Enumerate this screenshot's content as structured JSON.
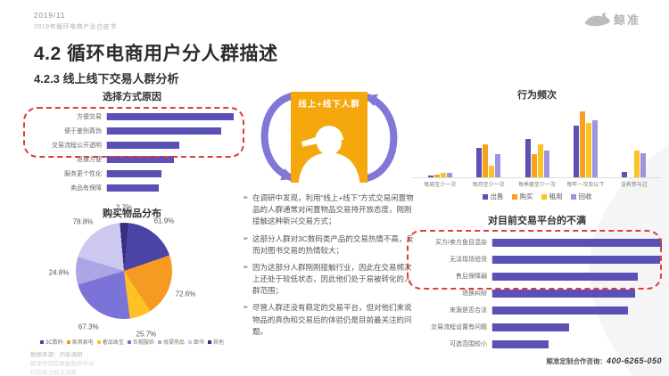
{
  "header": {
    "date": "2019/11",
    "doc_name": "2019年循环电商产业白皮书",
    "logo_text": "鲸准"
  },
  "title": "4.2 循环电商用户分人群描述",
  "subtitle": "4.2.3 线上线下交易人群分析",
  "center": {
    "card_title": "线上+线下人群",
    "bullets": [
      "在调研中发现，利用“线上+线下”方式交易闲置物品的人群通常对闲置物品交易持开放态度，刚刚接触这种新兴交易方式；",
      "这部分人群对3C数码类产品的交易热情不高，反而对图书交易的热情较大；",
      "因为这部分人群刚刚接触行业，因此在交易频次上还处于较低状态，因此他们处于易被转化的人群范围；",
      "尽管人群还没有稳定的交易平台，但对他们来说物品的真伪和交易后的体验仍是目前最关注的问题。"
    ],
    "bullet_marker": "➢"
  },
  "left": {
    "footnotes": [
      "数据来源：问卷调研",
      "鲸准研究院数据服务平台",
      "科技助力商业决策"
    ]
  },
  "right": {
    "contact": {
      "label": "鲸准定制合作咨询：",
      "phone": "400-6265-050"
    }
  },
  "colors": {
    "accent_purple": "#5A50B5",
    "accent_orange": "#F5A80C",
    "dashed_red": "#E03C3C",
    "arrow_purple": "#8077D6"
  },
  "chart_data": [
    {
      "id": "reasons",
      "type": "bar",
      "orientation": "horizontal",
      "title": "选择方式原因",
      "categories": [
        "方便交易",
        "便于鉴别真伪",
        "交易流程公开透明",
        "退换方便",
        "服务更个性化",
        "卖品有保障"
      ],
      "values": [
        100,
        90,
        57,
        53,
        43,
        41
      ],
      "value_unit": "relative_length_percent_of_max",
      "bar_color": "#5A50B5",
      "highlight_rows": [
        0,
        1,
        2
      ],
      "highlight_style": "red dashed rounded box"
    },
    {
      "id": "purchase-distribution",
      "type": "pie",
      "title": "购买物品分布",
      "start_deg": -5,
      "slices": [
        {
          "label": "其他",
          "pct": "2.7%",
          "sweep_deg": 10,
          "color": "#37307E"
        },
        {
          "label": "3C数码",
          "pct": "61.9%",
          "sweep_deg": 66,
          "color": "#4C43A7"
        },
        {
          "label": "家具家电",
          "pct": "72.6%",
          "sweep_deg": 76,
          "color": "#F59A23"
        },
        {
          "label": "奢品珠宝",
          "pct": "25.7%",
          "sweep_deg": 26,
          "color": "#FFC226"
        },
        {
          "label": "衣帽服饰",
          "pct": "67.3%",
          "sweep_deg": 80,
          "color": "#7C73D9"
        },
        {
          "label": "母婴用品",
          "pct": "24.8%",
          "sweep_deg": 34,
          "color": "#ACA6E6"
        },
        {
          "label": "图书",
          "pct": "78.8%",
          "sweep_deg": 68,
          "color": "#CCC8F0"
        }
      ],
      "legend": [
        "3C数码",
        "家具家电",
        "奢品珠宝",
        "衣帽服饰",
        "母婴用品",
        "图书",
        "其他"
      ],
      "legend_position": "bottom"
    },
    {
      "id": "behavior-frequency",
      "type": "bar",
      "grouped": true,
      "title": "行为频次",
      "categories": [
        "每周至少一次",
        "每月至少一次",
        "每季度至少一次",
        "每年一次及以下",
        "没有参与过"
      ],
      "series": [
        {
          "name": "出售",
          "color": "#5A50B5",
          "values": [
            3,
            42,
            55,
            75,
            8
          ]
        },
        {
          "name": "购买",
          "color": "#F6A21E",
          "values": [
            4,
            48,
            33,
            95,
            0
          ]
        },
        {
          "name": "租用",
          "color": "#FFC226",
          "values": [
            6,
            17,
            48,
            78,
            38
          ]
        },
        {
          "name": "回收",
          "color": "#9B94E0",
          "values": [
            6,
            33,
            38,
            82,
            35
          ]
        }
      ],
      "ylim": [
        0,
        100
      ],
      "legend_position": "bottom",
      "grid": false
    },
    {
      "id": "dissatisfaction",
      "type": "bar",
      "orientation": "horizontal",
      "title": "对目前交易平台的不满",
      "categories": [
        "买方/卖方鱼目混杂",
        "无法现场验货",
        "售后保障弱",
        "退换纠纷",
        "来源是否合法",
        "交易流程设置有问题",
        "可选范围较小"
      ],
      "values": [
        100,
        99,
        86,
        84,
        80,
        45,
        33
      ],
      "value_unit": "relative_length_percent_of_max",
      "bar_color": "#5A50B5",
      "highlight_rows": [
        0,
        1,
        2
      ],
      "highlight_style": "red dashed rounded box"
    }
  ]
}
